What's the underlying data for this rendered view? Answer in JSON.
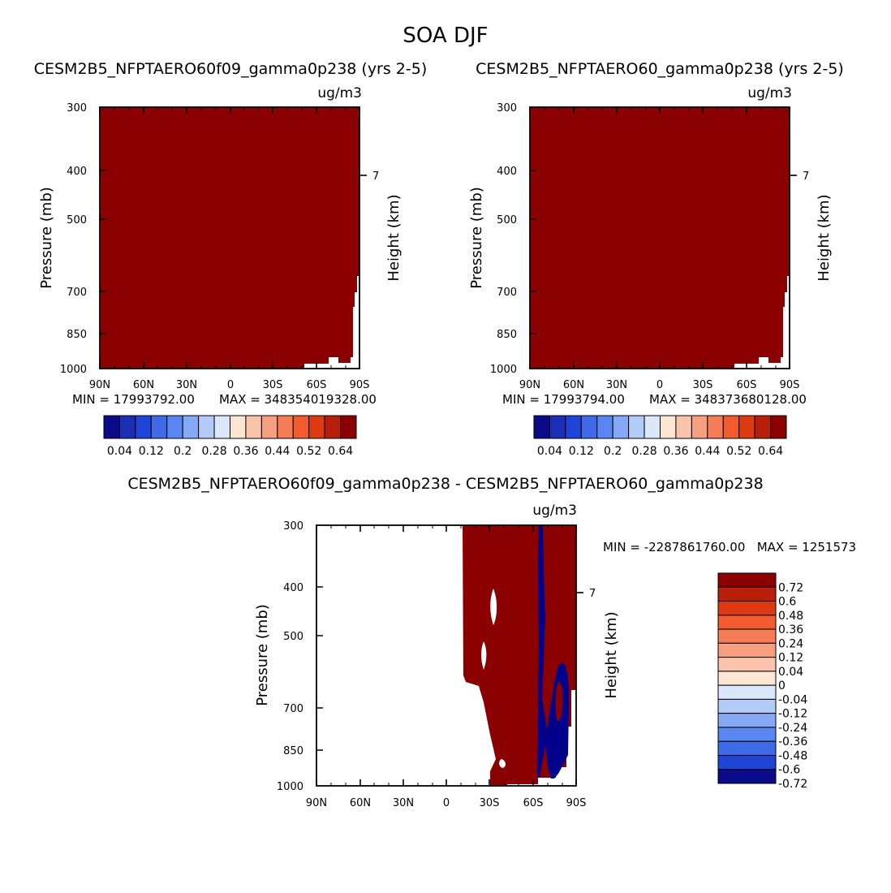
{
  "figure_title": "SOA DJF",
  "units": "ug/m3",
  "colors": {
    "fill_dark_red": "#8b0000",
    "fill_navy": "#00008b",
    "axis": "#000000",
    "background": "#ffffff"
  },
  "seq_colorbar": {
    "colors": [
      "#0b0b8a",
      "#1a2fb4",
      "#1f45d8",
      "#3f6be8",
      "#5a86f2",
      "#86a9f5",
      "#b3cbf7",
      "#dbe8fb",
      "#fde5d3",
      "#f9c4ab",
      "#f6a07f",
      "#f47d55",
      "#f15b2f",
      "#dd3a12",
      "#b81f0a",
      "#8b0000"
    ],
    "labels": [
      "0.04",
      "0.12",
      "0.2",
      "0.28",
      "0.36",
      "0.44",
      "0.52",
      "0.64"
    ]
  },
  "diff_colorbar": {
    "colors": [
      "#8b0000",
      "#b81f0a",
      "#dd3a12",
      "#f15b2f",
      "#f47d55",
      "#f6a07f",
      "#f9c4ab",
      "#fde5d3",
      "#dbe8fb",
      "#b3cbf7",
      "#86a9f5",
      "#5a86f2",
      "#3f6be8",
      "#1f45d8",
      "#0b0b8a"
    ],
    "labels": [
      "0.72",
      "0.6",
      "0.48",
      "0.36",
      "0.24",
      "0.12",
      "0.04",
      "0",
      "-0.04",
      "-0.12",
      "-0.24",
      "-0.36",
      "-0.48",
      "-0.6",
      "-0.72"
    ]
  },
  "chart_data": [
    {
      "type": "heatmap",
      "title": "CESM2B5_NFPTAERO60f09_gamma0p238 (yrs 2-5)",
      "units": "ug/m3",
      "xlabel": "",
      "ylabel": "Pressure (mb)",
      "y2label": "Height (km)",
      "x_ticks": [
        "90N",
        "60N",
        "30N",
        "0",
        "30S",
        "60S",
        "90S"
      ],
      "y_ticks": [
        300,
        400,
        500,
        700,
        850,
        1000
      ],
      "y2_ticks": [
        7
      ],
      "ylim": [
        1000,
        300
      ],
      "xlim": [
        "90N",
        "90S"
      ],
      "min_label": "MIN = 17993792.00",
      "max_label": "MAX = 348354019328.00",
      "field": "saturated > 0.64 (dark red) over nearly the whole domain; missing near surface south of ~50S"
    },
    {
      "type": "heatmap",
      "title": "CESM2B5_NFPTAERO60_gamma0p238 (yrs 2-5)",
      "units": "ug/m3",
      "xlabel": "",
      "ylabel": "Pressure (mb)",
      "y2label": "Height (km)",
      "x_ticks": [
        "90N",
        "60N",
        "30N",
        "0",
        "30S",
        "60S",
        "90S"
      ],
      "y_ticks": [
        300,
        400,
        500,
        700,
        850,
        1000
      ],
      "y2_ticks": [
        7
      ],
      "ylim": [
        1000,
        300
      ],
      "xlim": [
        "90N",
        "90S"
      ],
      "min_label": "MIN = 17993794.00",
      "max_label": "MAX = 348373680128.00",
      "field": "saturated > 0.64 (dark red) over nearly the whole domain; missing near surface south of ~50S"
    },
    {
      "type": "heatmap",
      "title": "CESM2B5_NFPTAERO60f09_gamma0p238 - CESM2B5_NFPTAERO60_gamma0p238",
      "units": "ug/m3",
      "xlabel": "",
      "ylabel": "Pressure (mb)",
      "y2label": "Height (km)",
      "x_ticks": [
        "90N",
        "60N",
        "30N",
        "0",
        "30S",
        "60S",
        "90S"
      ],
      "y_ticks": [
        300,
        400,
        500,
        700,
        850,
        1000
      ],
      "y2_ticks": [
        7
      ],
      "ylim": [
        1000,
        300
      ],
      "xlim": [
        "90N",
        "90S"
      ],
      "minmax_label": "MIN = -2287861760.00   MAX = 1251573",
      "field": "difference: > 0.72 (dark red) from ~15S to 90S; < -0.72 (navy) band near 65S and 70S-85S below ~600 mb; zero elsewhere"
    }
  ]
}
